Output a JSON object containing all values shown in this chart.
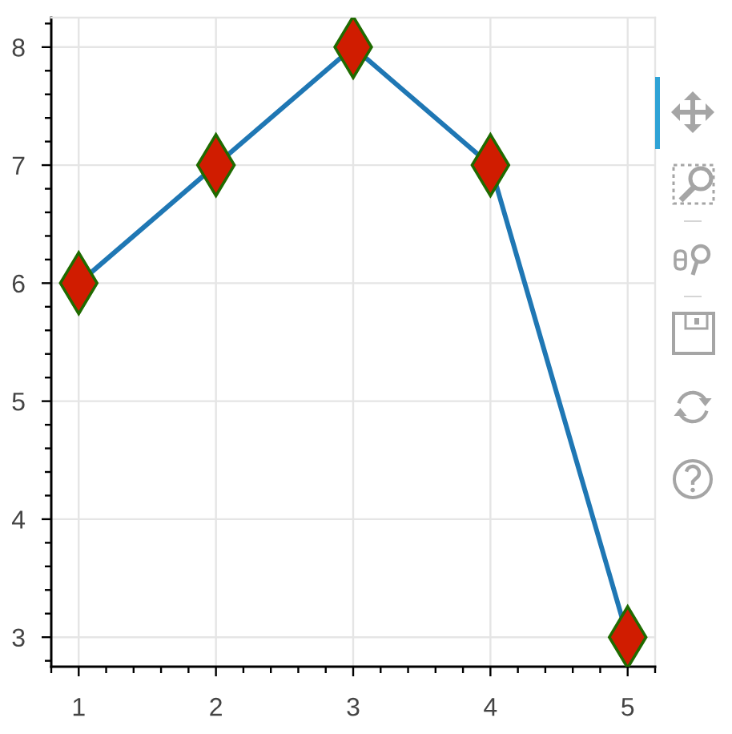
{
  "chart_data": {
    "type": "line",
    "x": [
      1,
      2,
      3,
      4,
      5
    ],
    "series": [
      {
        "color": "#1f77b4",
        "values": [
          6,
          7,
          8,
          7,
          3
        ]
      }
    ],
    "xlim": [
      0.8,
      5.2
    ],
    "ylim": [
      2.75,
      8.25
    ],
    "xticks": [
      1,
      2,
      3,
      4,
      5
    ],
    "yticks": [
      3,
      4,
      5,
      6,
      7,
      8
    ],
    "grid": true,
    "marker": "diamond",
    "line_style": "solid"
  }
}
